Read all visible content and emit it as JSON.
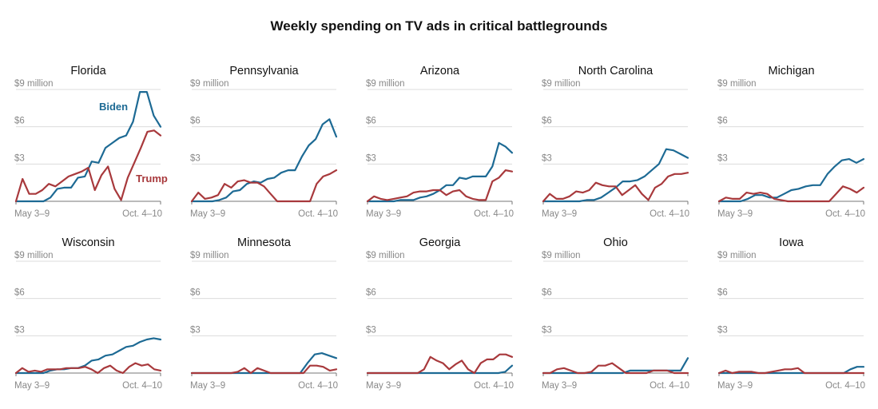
{
  "title": "Weekly spending on TV ads in critical battlegrounds",
  "colors": {
    "biden": "#1d6a94",
    "trump": "#a8393c",
    "grid": "#dcdcdc",
    "axis": "#777777",
    "label": "#888888"
  },
  "labels": {
    "biden": "Biden",
    "trump": "Trump"
  },
  "y_ticks": [
    "$9 million",
    "$6",
    "$3"
  ],
  "x_ticks": [
    "May 3–9",
    "Oct. 4–10"
  ],
  "chart_data": [
    {
      "type": "line",
      "state": "Florida",
      "ylim": [
        0,
        9
      ],
      "series": [
        {
          "name": "Biden",
          "values": [
            0,
            0,
            0,
            0,
            0,
            0.3,
            1.0,
            1.1,
            1.1,
            1.9,
            2.0,
            3.2,
            3.1,
            4.3,
            4.7,
            5.1,
            5.3,
            6.4,
            8.8,
            8.8,
            6.9,
            6.0
          ]
        },
        {
          "name": "Trump",
          "values": [
            0,
            1.8,
            0.6,
            0.6,
            0.9,
            1.4,
            1.2,
            1.6,
            2.0,
            2.2,
            2.4,
            2.7,
            0.9,
            2.1,
            2.8,
            1.0,
            0.1,
            1.9,
            3.1,
            4.3,
            5.6,
            5.7,
            5.3
          ]
        }
      ]
    },
    {
      "type": "line",
      "state": "Pennsylvania",
      "ylim": [
        0,
        9
      ],
      "series": [
        {
          "name": "Biden",
          "values": [
            0,
            0,
            0,
            0,
            0.1,
            0.3,
            0.8,
            0.9,
            1.4,
            1.6,
            1.5,
            1.8,
            1.9,
            2.3,
            2.5,
            2.5,
            3.6,
            4.5,
            5.0,
            6.2,
            6.6,
            5.2
          ]
        },
        {
          "name": "Trump",
          "values": [
            0,
            0.7,
            0.2,
            0.3,
            0.5,
            1.4,
            1.1,
            1.6,
            1.7,
            1.5,
            1.5,
            1.2,
            0.6,
            0,
            0,
            0,
            0,
            0,
            0,
            1.4,
            2.0,
            2.2,
            2.5
          ]
        }
      ]
    },
    {
      "type": "line",
      "state": "Arizona",
      "ylim": [
        0,
        9
      ],
      "series": [
        {
          "name": "Biden",
          "values": [
            0,
            0,
            0,
            0,
            0,
            0.1,
            0.1,
            0.1,
            0.3,
            0.4,
            0.6,
            0.9,
            1.3,
            1.3,
            1.9,
            1.8,
            2.0,
            2.0,
            2.0,
            2.8,
            4.7,
            4.4,
            3.9
          ]
        },
        {
          "name": "Trump",
          "values": [
            0,
            0.4,
            0.2,
            0.1,
            0.2,
            0.3,
            0.4,
            0.7,
            0.8,
            0.8,
            0.9,
            0.9,
            0.5,
            0.8,
            0.9,
            0.4,
            0.2,
            0.1,
            0.1,
            1.6,
            1.9,
            2.5,
            2.4
          ]
        }
      ]
    },
    {
      "type": "line",
      "state": "North Carolina",
      "ylim": [
        0,
        9
      ],
      "series": [
        {
          "name": "Biden",
          "values": [
            0,
            0,
            0,
            0,
            0,
            0,
            0.1,
            0.1,
            0.3,
            0.7,
            1.1,
            1.6,
            1.6,
            1.7,
            2.0,
            2.5,
            3.0,
            4.2,
            4.1,
            3.8,
            3.5
          ]
        },
        {
          "name": "Trump",
          "values": [
            0,
            0.6,
            0.2,
            0.2,
            0.4,
            0.8,
            0.7,
            0.9,
            1.5,
            1.3,
            1.2,
            1.2,
            0.5,
            0.9,
            1.3,
            0.6,
            0.1,
            1.1,
            1.4,
            2.0,
            2.2,
            2.2,
            2.3
          ]
        }
      ]
    },
    {
      "type": "line",
      "state": "Michigan",
      "ylim": [
        0,
        9
      ],
      "series": [
        {
          "name": "Biden",
          "values": [
            0,
            0,
            0,
            0,
            0.2,
            0.5,
            0.5,
            0.3,
            0.3,
            0.6,
            0.9,
            1.0,
            1.2,
            1.3,
            1.3,
            2.2,
            2.8,
            3.3,
            3.4,
            3.1,
            3.4
          ]
        },
        {
          "name": "Trump",
          "values": [
            0,
            0.3,
            0.2,
            0.2,
            0.7,
            0.6,
            0.7,
            0.6,
            0.2,
            0.1,
            0,
            0,
            0,
            0,
            0,
            0,
            0,
            0.6,
            1.2,
            1.0,
            0.7,
            1.1
          ]
        }
      ]
    },
    {
      "type": "line",
      "state": "Wisconsin",
      "ylim": [
        0,
        9
      ],
      "series": [
        {
          "name": "Biden",
          "values": [
            0,
            0,
            0,
            0,
            0,
            0.2,
            0.3,
            0.3,
            0.4,
            0.4,
            0.6,
            1.0,
            1.1,
            1.4,
            1.5,
            1.8,
            2.1,
            2.2,
            2.5,
            2.7,
            2.8,
            2.7
          ]
        },
        {
          "name": "Trump",
          "values": [
            0,
            0.4,
            0.1,
            0.2,
            0.1,
            0.3,
            0.3,
            0.3,
            0.4,
            0.4,
            0.4,
            0.5,
            0.3,
            0,
            0.4,
            0.6,
            0.2,
            0,
            0.5,
            0.8,
            0.6,
            0.7,
            0.3,
            0.2
          ]
        }
      ]
    },
    {
      "type": "line",
      "state": "Minnesota",
      "ylim": [
        0,
        9
      ],
      "series": [
        {
          "name": "Biden",
          "values": [
            0,
            0,
            0,
            0,
            0,
            0,
            0,
            0,
            0,
            0,
            0,
            0,
            0,
            0,
            0,
            0,
            0.8,
            1.5,
            1.6,
            1.4,
            1.2
          ]
        },
        {
          "name": "Trump",
          "values": [
            0,
            0,
            0,
            0,
            0,
            0,
            0,
            0.1,
            0.4,
            0,
            0.4,
            0.2,
            0,
            0,
            0,
            0,
            0,
            0,
            0.6,
            0.6,
            0.5,
            0.2,
            0.3
          ]
        }
      ]
    },
    {
      "type": "line",
      "state": "Georgia",
      "ylim": [
        0,
        9
      ],
      "series": [
        {
          "name": "Biden",
          "values": [
            0,
            0,
            0,
            0,
            0,
            0,
            0,
            0,
            0,
            0,
            0,
            0,
            0,
            0,
            0,
            0,
            0,
            0,
            0,
            0,
            0.1,
            0.6
          ]
        },
        {
          "name": "Trump",
          "values": [
            0,
            0,
            0,
            0,
            0,
            0,
            0,
            0,
            0,
            0.3,
            1.3,
            1.0,
            0.8,
            0.3,
            0.7,
            1.0,
            0.3,
            0,
            0.8,
            1.1,
            1.1,
            1.5,
            1.5,
            1.3
          ]
        }
      ]
    },
    {
      "type": "line",
      "state": "Ohio",
      "ylim": [
        0,
        9
      ],
      "series": [
        {
          "name": "Biden",
          "values": [
            0,
            0,
            0,
            0,
            0,
            0,
            0,
            0,
            0,
            0,
            0,
            0,
            0.2,
            0.2,
            0.2,
            0.2,
            0.2,
            0.2,
            0.2,
            0.2,
            1.2
          ]
        },
        {
          "name": "Trump",
          "values": [
            0,
            0,
            0.3,
            0.4,
            0.2,
            0,
            0,
            0.1,
            0.6,
            0.6,
            0.8,
            0.4,
            0,
            0,
            0,
            0,
            0.2,
            0.2,
            0.2,
            0,
            0,
            0
          ]
        }
      ]
    },
    {
      "type": "line",
      "state": "Iowa",
      "ylim": [
        0,
        9
      ],
      "series": [
        {
          "name": "Biden",
          "values": [
            0,
            0,
            0,
            0,
            0,
            0,
            0,
            0,
            0,
            0,
            0,
            0,
            0,
            0,
            0,
            0,
            0,
            0,
            0,
            0,
            0.3,
            0.5,
            0.5
          ]
        },
        {
          "name": "Trump",
          "values": [
            0,
            0.2,
            0,
            0.1,
            0.1,
            0.1,
            0,
            0,
            0.1,
            0.2,
            0.3,
            0.3,
            0.4,
            0,
            0,
            0,
            0,
            0,
            0,
            0,
            0,
            0,
            0
          ]
        }
      ]
    }
  ]
}
